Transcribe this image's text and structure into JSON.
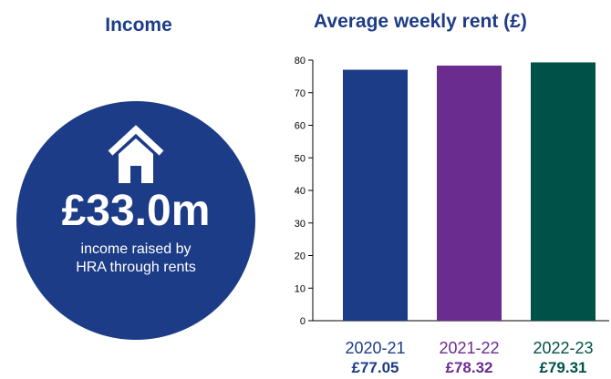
{
  "income": {
    "title": "Income",
    "amount": "£33.0m",
    "caption_line1": "income raised by",
    "caption_line2": "HRA through rents"
  },
  "chart_data": {
    "type": "bar",
    "title": "Average weekly rent (£)",
    "categories": [
      "2020-21",
      "2021-22",
      "2022-23"
    ],
    "values": [
      77.05,
      78.32,
      79.31
    ],
    "value_labels": [
      "£77.05",
      "£78.32",
      "£79.31"
    ],
    "colors": [
      "#1d3c87",
      "#6b2c8f",
      "#005249"
    ],
    "ylim": [
      0,
      80
    ],
    "yticks": [
      0,
      10,
      20,
      30,
      40,
      50,
      60,
      70,
      80
    ],
    "grid": false
  }
}
